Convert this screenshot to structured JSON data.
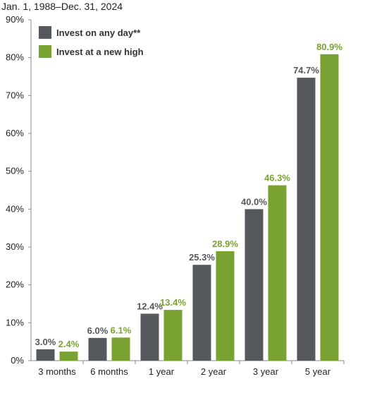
{
  "subtitle": "Jan. 1, 1988–Dec. 31, 2024",
  "chart_data": {
    "type": "bar",
    "subtitle": "Jan. 1, 1988–Dec. 31, 2024",
    "categories": [
      "3 months",
      "6 months",
      "1 year",
      "2 year",
      "3 year",
      "5 year"
    ],
    "series": [
      {
        "name": "Invest on any day**",
        "color": "#55585c",
        "label_color": "#55585c",
        "values": [
          3.0,
          6.0,
          12.4,
          25.3,
          40.0,
          74.7
        ],
        "labels": [
          "3.0%",
          "6.0%",
          "12.4%",
          "25.3%",
          "40.0%",
          "74.7%"
        ]
      },
      {
        "name": "Invest at a new high",
        "color": "#7aa232",
        "label_color": "#7aa232",
        "values": [
          2.4,
          6.1,
          13.4,
          28.9,
          46.3,
          80.9
        ],
        "labels": [
          "2.4%",
          "6.1%",
          "13.4%",
          "28.9%",
          "46.3%",
          "80.9%"
        ]
      }
    ],
    "yticks": [
      "0%",
      "10%",
      "20%",
      "30%",
      "40%",
      "50%",
      "60%",
      "70%",
      "80%",
      "90%"
    ],
    "ylim": [
      0,
      90
    ],
    "grid": false,
    "legend_position": "top-left"
  }
}
